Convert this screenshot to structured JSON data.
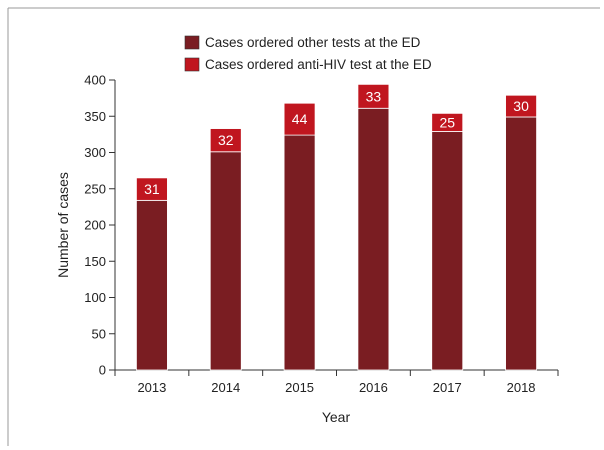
{
  "chart_data": {
    "type": "bar",
    "stacked": true,
    "categories": [
      "2013",
      "2014",
      "2015",
      "2016",
      "2017",
      "2018"
    ],
    "series": [
      {
        "name": "Cases ordered other tests at the ED",
        "color": "#7a1d22",
        "values": [
          234,
          301,
          324,
          361,
          329,
          349
        ]
      },
      {
        "name": "Cases ordered anti-HIV test at the ED",
        "color": "#c0161f",
        "values": [
          31,
          32,
          44,
          33,
          25,
          30
        ],
        "labels": [
          "31",
          "32",
          "44",
          "33",
          "25",
          "30"
        ]
      }
    ],
    "xlabel": "Year",
    "ylabel": "Number of cases",
    "ylim": [
      0,
      400
    ],
    "yticks": [
      "0",
      "50",
      "100",
      "150",
      "200",
      "250",
      "300",
      "350",
      "400"
    ],
    "grid": false,
    "legend": "top-center"
  }
}
